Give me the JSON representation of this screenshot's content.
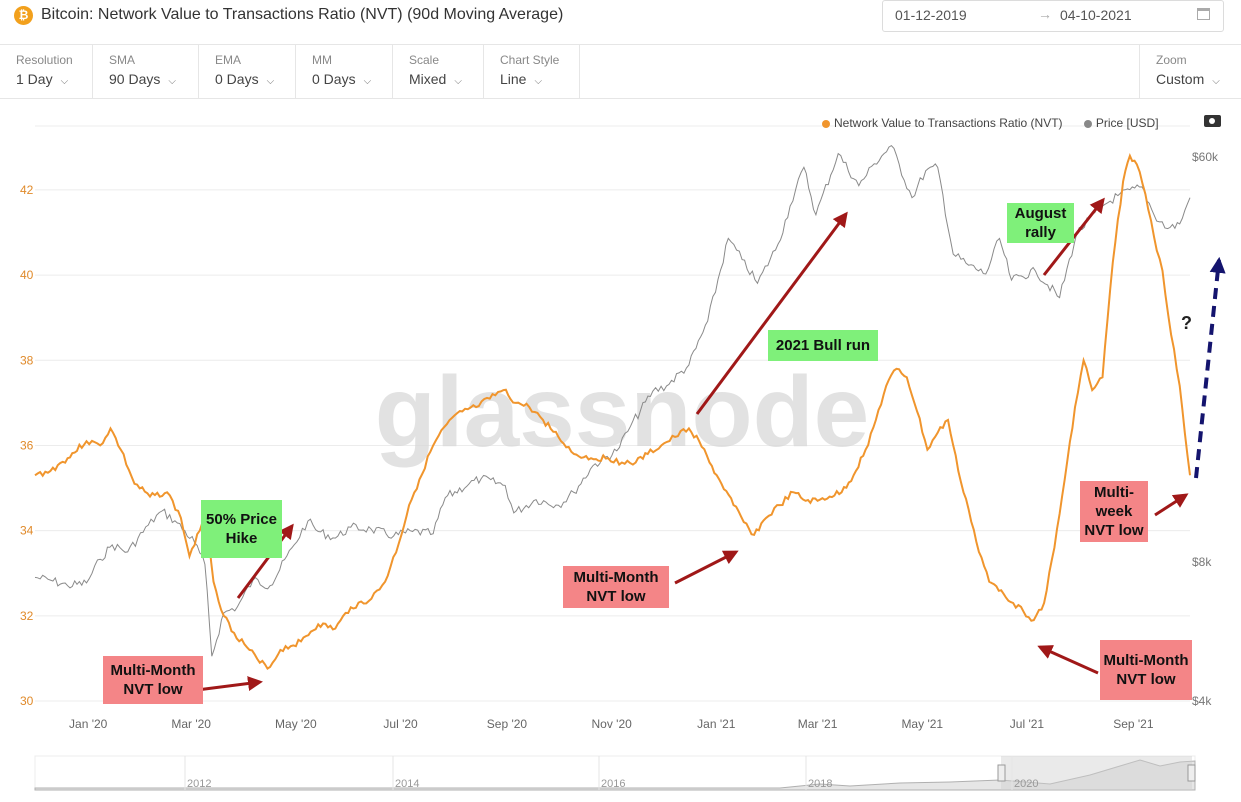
{
  "header": {
    "icon_glyph": "₿",
    "title": "Bitcoin: Network Value to Transactions Ratio (NVT) (90d Moving Average)",
    "date_start": "01-12-2019",
    "date_arrow": "→",
    "date_end": "04-10-2021"
  },
  "controls": [
    {
      "label": "Resolution",
      "value": "1 Day"
    },
    {
      "label": "SMA",
      "value": "90 Days"
    },
    {
      "label": "EMA",
      "value": "0 Days"
    },
    {
      "label": "MM",
      "value": "0 Days"
    },
    {
      "label": "Scale",
      "value": "Mixed"
    },
    {
      "label": "Chart Style",
      "value": "Line"
    }
  ],
  "zoom": {
    "label": "Zoom",
    "value": "Custom"
  },
  "legend": {
    "nvt": "Network Value to Transactions Ratio (NVT)",
    "price": "Price [USD]"
  },
  "colors": {
    "nvt": "#f0952d",
    "price": "#888888",
    "arrow_red": "#a01818",
    "arrow_blue": "#14146e",
    "green_box": "#7ff07a",
    "red_box": "#f48587"
  },
  "icons": [
    "bitcoin-icon",
    "calendar-icon",
    "chevron-down-icon",
    "camera-icon"
  ],
  "watermark": "glassnode",
  "annotations": {
    "price_hike": "50% Price Hike",
    "bull_run": "2021 Bull run",
    "august_rally": "August rally",
    "low_1": "Multi-Month NVT low",
    "low_2": "Multi-Month NVT low",
    "low_3": "Multi-Month NVT low",
    "low_4": "Multi-week NVT low",
    "question": "?"
  },
  "navigator_years": [
    "2012",
    "2014",
    "2016",
    "2018",
    "2020"
  ],
  "chart_data": {
    "type": "line",
    "x_tick_labels": [
      "Jan '20",
      "Mar '20",
      "May '20",
      "Jul '20",
      "Sep '20",
      "Nov '20",
      "Jan '21",
      "Mar '21",
      "May '21",
      "Jul '21",
      "Sep '21"
    ],
    "y_left": {
      "ticks": [
        "30",
        "32",
        "34",
        "36",
        "38",
        "40",
        "42"
      ],
      "ylim": [
        30,
        43.5
      ]
    },
    "y_right": {
      "scale": "log",
      "ticks": [
        "$4k",
        "$8k",
        "$60k"
      ],
      "ylim": [
        4000,
        70000
      ]
    },
    "grid": true,
    "legend_position": "top-right",
    "series": [
      {
        "name": "Network Value to Transactions Ratio (NVT)",
        "axis": "left",
        "points": [
          [
            "2019-12-01",
            35.3
          ],
          [
            "2019-12-10",
            35.4
          ],
          [
            "2019-12-20",
            35.7
          ],
          [
            "2019-12-31",
            36.1
          ],
          [
            "2020-01-08",
            36.0
          ],
          [
            "2020-01-14",
            36.4
          ],
          [
            "2020-01-20",
            35.9
          ],
          [
            "2020-01-28",
            35.1
          ],
          [
            "2020-02-06",
            34.8
          ],
          [
            "2020-02-16",
            34.9
          ],
          [
            "2020-02-24",
            34.3
          ],
          [
            "2020-02-29",
            33.4
          ],
          [
            "2020-03-06",
            34.0
          ],
          [
            "2020-03-10",
            34.3
          ],
          [
            "2020-03-14",
            32.8
          ],
          [
            "2020-03-20",
            32.0
          ],
          [
            "2020-03-26",
            31.6
          ],
          [
            "2020-04-04",
            31.2
          ],
          [
            "2020-04-10",
            30.9
          ],
          [
            "2020-04-16",
            30.8
          ],
          [
            "2020-04-22",
            31.2
          ],
          [
            "2020-05-04",
            31.4
          ],
          [
            "2020-05-14",
            31.8
          ],
          [
            "2020-05-24",
            31.7
          ],
          [
            "2020-06-02",
            32.2
          ],
          [
            "2020-06-14",
            32.4
          ],
          [
            "2020-06-22",
            32.8
          ],
          [
            "2020-06-30",
            33.7
          ],
          [
            "2020-07-06",
            34.6
          ],
          [
            "2020-07-12",
            35.2
          ],
          [
            "2020-07-20",
            36.0
          ],
          [
            "2020-07-28",
            36.5
          ],
          [
            "2020-08-06",
            36.8
          ],
          [
            "2020-08-14",
            36.9
          ],
          [
            "2020-08-22",
            37.1
          ],
          [
            "2020-08-30",
            37.3
          ],
          [
            "2020-09-06",
            37.0
          ],
          [
            "2020-09-14",
            36.9
          ],
          [
            "2020-09-22",
            36.6
          ],
          [
            "2020-10-01",
            36.2
          ],
          [
            "2020-10-10",
            35.8
          ],
          [
            "2020-10-20",
            35.7
          ],
          [
            "2020-10-30",
            35.7
          ],
          [
            "2020-11-07",
            35.6
          ],
          [
            "2020-11-15",
            35.6
          ],
          [
            "2020-11-22",
            35.8
          ],
          [
            "2020-11-30",
            36.0
          ],
          [
            "2020-12-08",
            36.2
          ],
          [
            "2020-12-16",
            36.4
          ],
          [
            "2020-12-22",
            36.1
          ],
          [
            "2020-12-28",
            35.6
          ],
          [
            "2021-01-04",
            35.1
          ],
          [
            "2021-01-11",
            34.6
          ],
          [
            "2021-01-17",
            34.2
          ],
          [
            "2021-01-23",
            33.9
          ],
          [
            "2021-01-30",
            34.3
          ],
          [
            "2021-02-07",
            34.6
          ],
          [
            "2021-02-15",
            34.9
          ],
          [
            "2021-02-22",
            34.7
          ],
          [
            "2021-03-01",
            34.7
          ],
          [
            "2021-03-08",
            34.8
          ],
          [
            "2021-03-15",
            34.9
          ],
          [
            "2021-03-22",
            35.3
          ],
          [
            "2021-03-29",
            35.9
          ],
          [
            "2021-04-04",
            36.6
          ],
          [
            "2021-04-10",
            37.4
          ],
          [
            "2021-04-16",
            37.8
          ],
          [
            "2021-04-22",
            37.6
          ],
          [
            "2021-04-28",
            36.8
          ],
          [
            "2021-05-04",
            35.9
          ],
          [
            "2021-05-10",
            36.3
          ],
          [
            "2021-05-16",
            36.6
          ],
          [
            "2021-05-22",
            35.4
          ],
          [
            "2021-05-28",
            34.5
          ],
          [
            "2021-06-03",
            33.5
          ],
          [
            "2021-06-09",
            32.8
          ],
          [
            "2021-06-16",
            32.6
          ],
          [
            "2021-06-23",
            32.3
          ],
          [
            "2021-06-29",
            32.1
          ],
          [
            "2021-07-05",
            31.9
          ],
          [
            "2021-07-11",
            32.3
          ],
          [
            "2021-07-17",
            33.6
          ],
          [
            "2021-07-23",
            35.2
          ],
          [
            "2021-07-29",
            36.9
          ],
          [
            "2021-08-03",
            38.0
          ],
          [
            "2021-08-08",
            37.3
          ],
          [
            "2021-08-14",
            37.6
          ],
          [
            "2021-08-20",
            40.3
          ],
          [
            "2021-08-26",
            42.2
          ],
          [
            "2021-08-30",
            42.8
          ],
          [
            "2021-09-03",
            42.6
          ],
          [
            "2021-09-08",
            41.9
          ],
          [
            "2021-09-13",
            40.9
          ],
          [
            "2021-09-18",
            40.1
          ],
          [
            "2021-09-23",
            38.6
          ],
          [
            "2021-09-28",
            37.4
          ],
          [
            "2021-10-04",
            35.3
          ]
        ]
      },
      {
        "name": "Price [USD]",
        "axis": "right",
        "points": [
          [
            "2019-12-01",
            7400
          ],
          [
            "2019-12-10",
            7300
          ],
          [
            "2019-12-20",
            7100
          ],
          [
            "2019-12-31",
            7200
          ],
          [
            "2020-01-08",
            8100
          ],
          [
            "2020-01-15",
            8700
          ],
          [
            "2020-01-24",
            8400
          ],
          [
            "2020-02-05",
            9600
          ],
          [
            "2020-02-13",
            10300
          ],
          [
            "2020-02-22",
            9700
          ],
          [
            "2020-03-03",
            8800
          ],
          [
            "2020-03-09",
            7900
          ],
          [
            "2020-03-13",
            5000
          ],
          [
            "2020-03-20",
            6200
          ],
          [
            "2020-03-28",
            6400
          ],
          [
            "2020-04-06",
            7300
          ],
          [
            "2020-04-16",
            7100
          ],
          [
            "2020-04-30",
            8700
          ],
          [
            "2020-05-08",
            9800
          ],
          [
            "2020-05-14",
            9300
          ],
          [
            "2020-05-24",
            9000
          ],
          [
            "2020-06-02",
            9500
          ],
          [
            "2020-06-14",
            9400
          ],
          [
            "2020-06-27",
            9100
          ],
          [
            "2020-07-08",
            9300
          ],
          [
            "2020-07-20",
            9200
          ],
          [
            "2020-07-27",
            11000
          ],
          [
            "2020-08-10",
            11800
          ],
          [
            "2020-08-17",
            12100
          ],
          [
            "2020-08-31",
            11700
          ],
          [
            "2020-09-05",
            10200
          ],
          [
            "2020-09-18",
            10900
          ],
          [
            "2020-10-01",
            10600
          ],
          [
            "2020-10-10",
            11300
          ],
          [
            "2020-10-21",
            12900
          ],
          [
            "2020-11-04",
            13900
          ],
          [
            "2020-11-12",
            15700
          ],
          [
            "2020-11-25",
            18700
          ],
          [
            "2020-12-03",
            19200
          ],
          [
            "2020-12-16",
            21300
          ],
          [
            "2020-12-27",
            26500
          ],
          [
            "2021-01-08",
            40000
          ],
          [
            "2021-01-16",
            36000
          ],
          [
            "2021-01-25",
            32000
          ],
          [
            "2021-02-06",
            38900
          ],
          [
            "2021-02-13",
            47000
          ],
          [
            "2021-02-21",
            57000
          ],
          [
            "2021-02-28",
            45000
          ],
          [
            "2021-03-13",
            61000
          ],
          [
            "2021-03-25",
            52000
          ],
          [
            "2021-04-03",
            58000
          ],
          [
            "2021-04-13",
            63500
          ],
          [
            "2021-04-25",
            49000
          ],
          [
            "2021-05-03",
            56000
          ],
          [
            "2021-05-10",
            57000
          ],
          [
            "2021-05-19",
            37000
          ],
          [
            "2021-05-28",
            35000
          ],
          [
            "2021-06-07",
            33500
          ],
          [
            "2021-06-15",
            40000
          ],
          [
            "2021-06-22",
            32500
          ],
          [
            "2021-07-06",
            34000
          ],
          [
            "2021-07-20",
            29800
          ],
          [
            "2021-07-30",
            41000
          ],
          [
            "2021-08-14",
            47000
          ],
          [
            "2021-08-23",
            49500
          ],
          [
            "2021-09-06",
            51700
          ],
          [
            "2021-09-13",
            45000
          ],
          [
            "2021-09-21",
            42000
          ],
          [
            "2021-09-28",
            43000
          ],
          [
            "2021-10-04",
            49000
          ]
        ]
      }
    ]
  }
}
